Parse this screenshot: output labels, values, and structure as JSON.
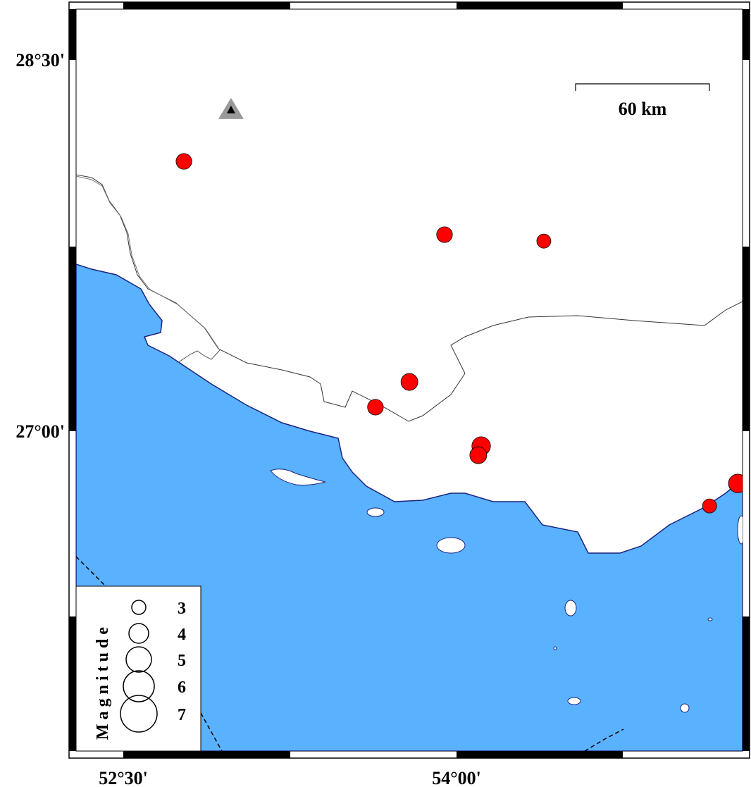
{
  "map": {
    "axes": {
      "lat_labels": [
        "28°30'",
        "27°00'"
      ],
      "lon_labels": [
        "52°30'",
        "54°00'"
      ]
    },
    "colors": {
      "sea": "#5ab2ff",
      "land": "#ffffff",
      "event": "#ff0000",
      "coastline": "#1a237e",
      "station": "#999999"
    },
    "scale_bar": {
      "label": "60 km"
    },
    "station": {
      "lon": 52.985,
      "lat": 28.301,
      "symbol": "triangle"
    },
    "events": [
      {
        "lon": 52.773,
        "lat": 28.09,
        "mag": 3.3
      },
      {
        "lon": 53.946,
        "lat": 27.794,
        "mag": 3.3
      },
      {
        "lon": 54.393,
        "lat": 27.768,
        "mag": 3.0
      },
      {
        "lon": 53.788,
        "lat": 27.199,
        "mag": 3.5
      },
      {
        "lon": 53.635,
        "lat": 27.097,
        "mag": 3.3
      },
      {
        "lon": 54.111,
        "lat": 26.94,
        "mag": 3.8
      },
      {
        "lon": 54.098,
        "lat": 26.903,
        "mag": 3.5
      },
      {
        "lon": 55.266,
        "lat": 26.789,
        "mag": 3.8
      },
      {
        "lon": 55.139,
        "lat": 26.698,
        "mag": 3.0
      }
    ],
    "legend": {
      "title": "Magnitude",
      "items": [
        {
          "mag": 3,
          "label": "3"
        },
        {
          "mag": 4,
          "label": "4"
        },
        {
          "mag": 5,
          "label": "5"
        },
        {
          "mag": 6,
          "label": "6"
        },
        {
          "mag": 7,
          "label": "7"
        }
      ]
    }
  }
}
